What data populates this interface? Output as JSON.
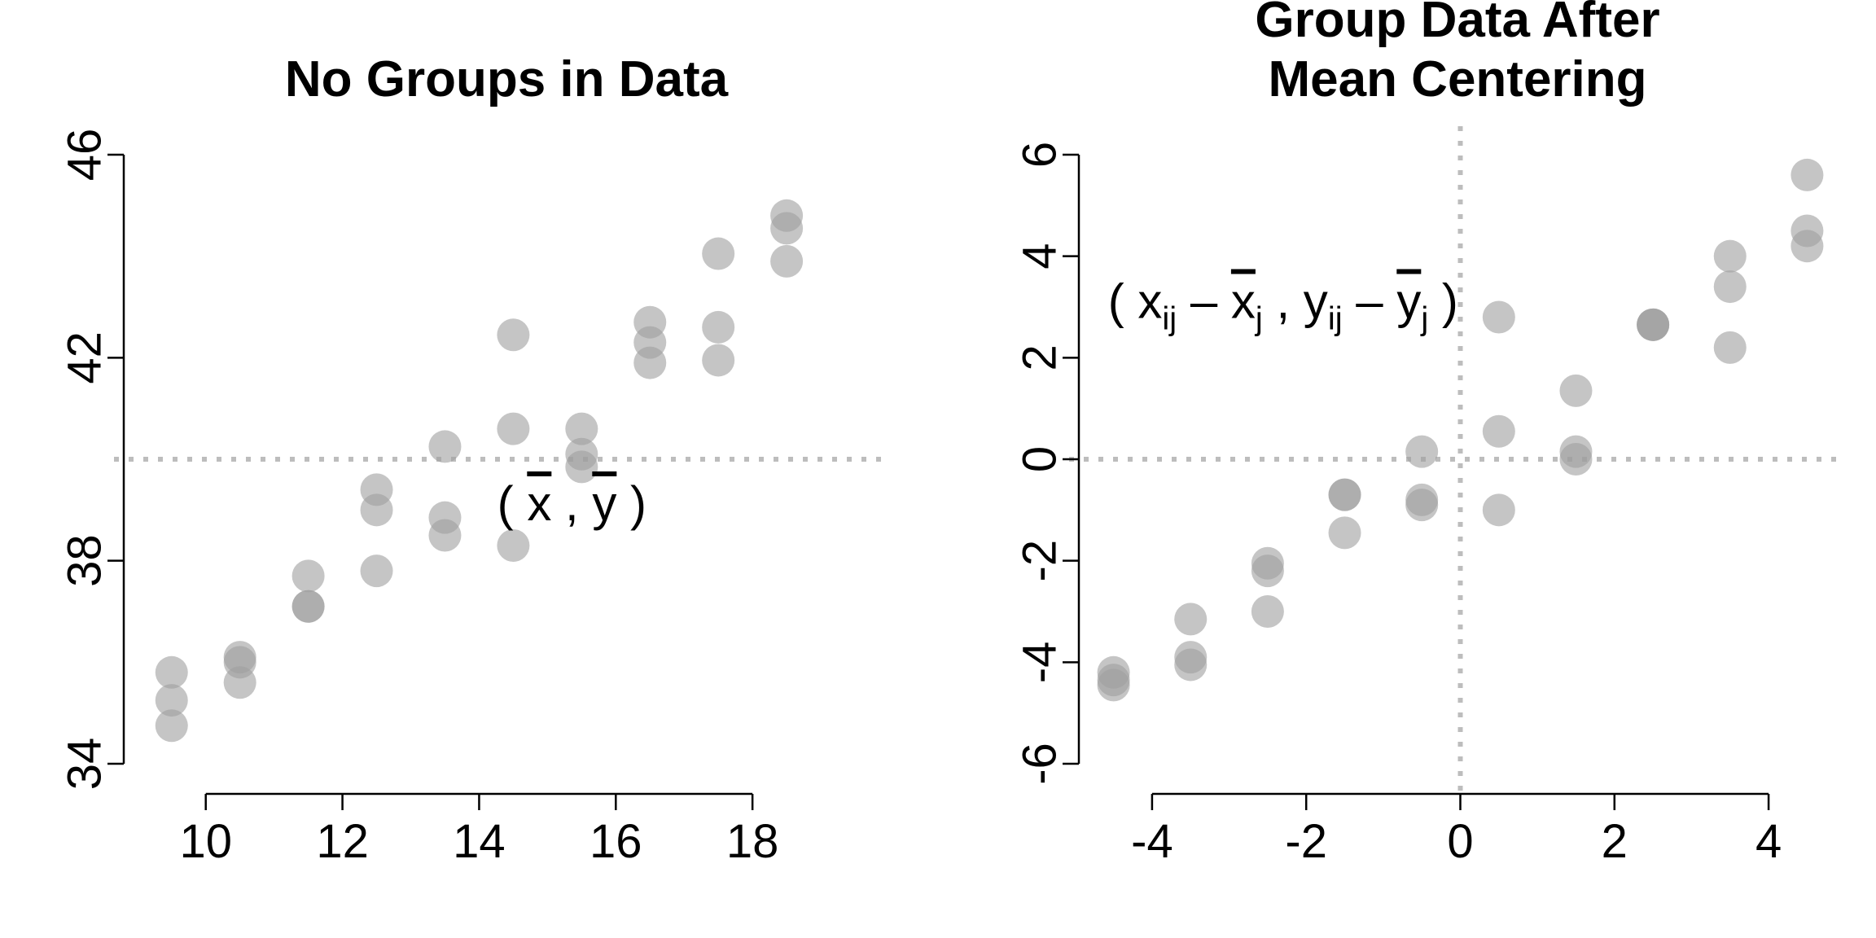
{
  "colors": {
    "points": "#9e9e9e",
    "points_opacity": 0.6,
    "reference_line": "#bdbdbd",
    "axis": "#000000"
  },
  "chart_data": [
    {
      "type": "scatter",
      "title": "No Groups in Data",
      "xlabel": "",
      "ylabel": "",
      "xlim": [
        8.8,
        20.0
      ],
      "ylim": [
        34,
        46
      ],
      "xticks": [
        10,
        12,
        14,
        16,
        18
      ],
      "yticks": [
        34,
        38,
        42,
        46
      ],
      "reference_lines": {
        "horizontal": 40,
        "style": "dotted"
      },
      "annotation": {
        "text": "( x̄ , ȳ )",
        "x": 15.5,
        "y": 40
      },
      "grid": false,
      "x": [
        9.5,
        9.5,
        9.5,
        10.5,
        10.5,
        10.5,
        11.5,
        11.5,
        11.5,
        12.5,
        12.5,
        12.5,
        13.5,
        13.5,
        13.5,
        14.5,
        14.5,
        14.5,
        15.5,
        15.5,
        15.5,
        16.5,
        16.5,
        16.5,
        17.5,
        17.5,
        17.5,
        18.5,
        18.5,
        18.5
      ],
      "y": [
        35.8,
        35.25,
        34.75,
        36.1,
        36.0,
        35.6,
        37.7,
        37.1,
        37.1,
        39.4,
        39.0,
        37.8,
        40.25,
        38.85,
        38.5,
        42.45,
        40.6,
        38.3,
        40.6,
        40.1,
        39.85,
        42.7,
        42.3,
        41.9,
        44.05,
        42.6,
        41.95,
        44.8,
        44.55,
        43.9
      ]
    },
    {
      "type": "scatter",
      "title": "Group Data After Mean Centering",
      "title_lines": [
        "Group Data After",
        "Mean Centering"
      ],
      "xlabel": "",
      "ylabel": "",
      "xlim": [
        -4.95,
        4.95
      ],
      "ylim": [
        -6,
        6
      ],
      "xticks": [
        -4,
        -2,
        0,
        2,
        4
      ],
      "yticks": [
        -6,
        -4,
        -2,
        0,
        2,
        4,
        6
      ],
      "reference_lines": {
        "horizontal": 0,
        "vertical": 0,
        "style": "dotted"
      },
      "annotation": {
        "text": "( xij – x̄j , yij – ȳj )",
        "x": -2.3,
        "y": 1.5
      },
      "grid": false,
      "x": [
        -4.5,
        -4.5,
        -4.5,
        -3.5,
        -3.5,
        -3.5,
        -2.5,
        -2.5,
        -2.5,
        -1.5,
        -1.5,
        -1.5,
        -0.5,
        -0.5,
        -0.5,
        0.5,
        0.5,
        0.5,
        1.5,
        1.5,
        1.5,
        2.5,
        2.5,
        2.5,
        3.5,
        3.5,
        3.5,
        4.5,
        4.5,
        4.5
      ],
      "y": [
        -4.2,
        -4.35,
        -4.45,
        -3.15,
        -3.9,
        -4.05,
        -2.05,
        -2.2,
        -3.0,
        -0.7,
        -0.7,
        -1.45,
        0.15,
        -0.8,
        -0.9,
        2.8,
        0.55,
        -1.0,
        1.35,
        0.15,
        0.0,
        2.65,
        2.65,
        2.65,
        4.0,
        3.4,
        2.2,
        5.6,
        4.5,
        4.2
      ]
    }
  ]
}
